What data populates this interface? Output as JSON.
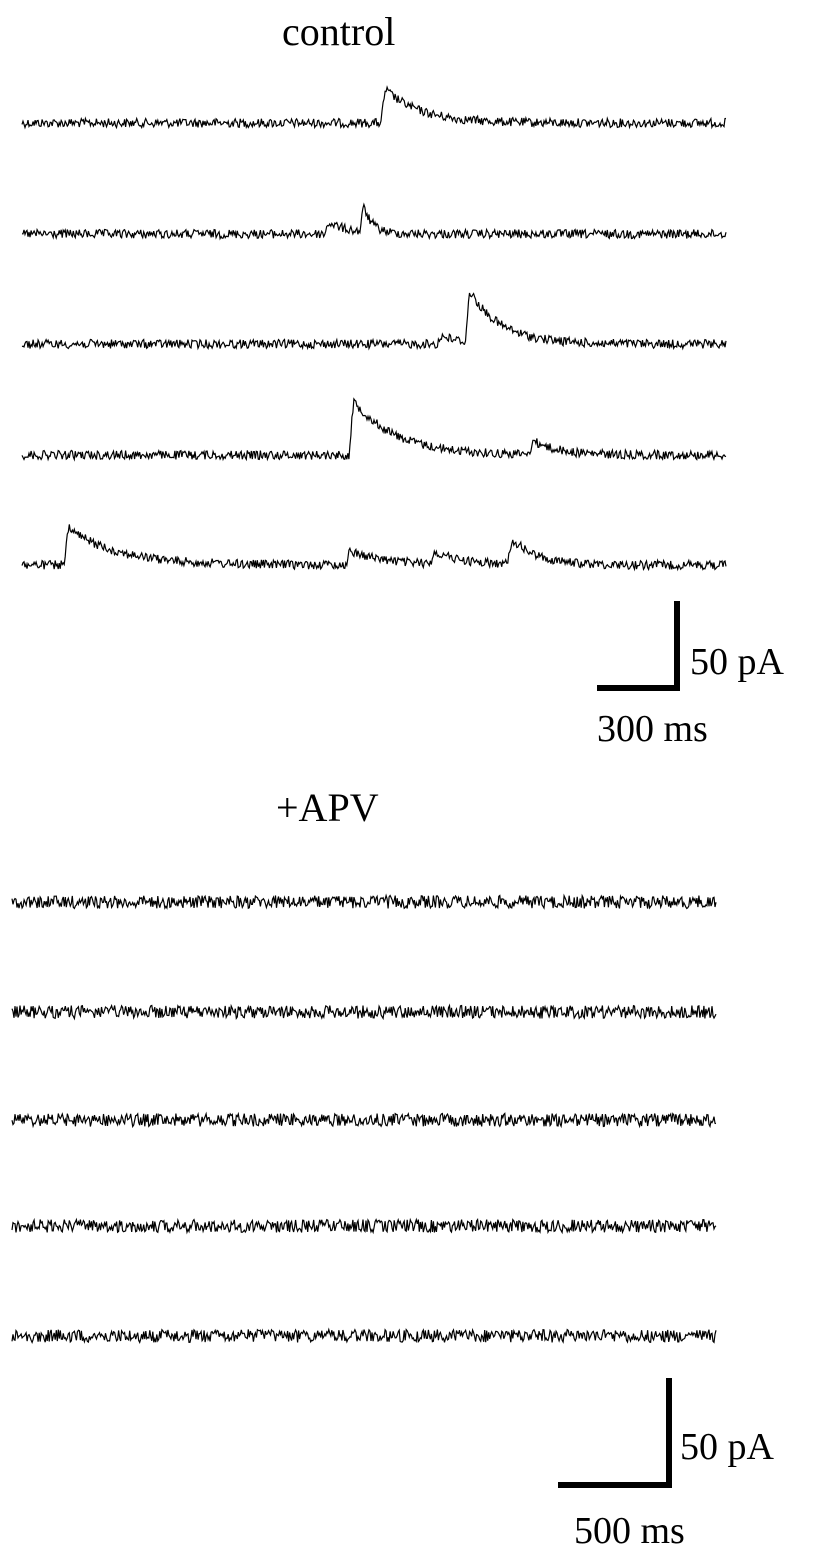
{
  "chart_data": [
    {
      "type": "line",
      "title": "control",
      "xlabel": "",
      "ylabel": "",
      "scale_bar": {
        "current": "50 pA",
        "time": "300 ms"
      },
      "series": [
        {
          "events": [
            {
              "t": 0.51,
              "amp": 38,
              "decay": 0.05
            }
          ]
        },
        {
          "events": [
            {
              "t": 0.43,
              "amp": 14,
              "decay": 0.03
            },
            {
              "t": 0.48,
              "amp": 40,
              "decay": 0.012
            }
          ]
        },
        {
          "events": [
            {
              "t": 0.59,
              "amp": 10,
              "decay": 0.03
            },
            {
              "t": 0.63,
              "amp": 58,
              "decay": 0.045
            }
          ]
        },
        {
          "events": [
            {
              "t": 0.465,
              "amp": 60,
              "decay": 0.06
            },
            {
              "t": 0.72,
              "amp": 16,
              "decay": 0.035
            }
          ]
        },
        {
          "events": [
            {
              "t": 0.06,
              "amp": 40,
              "decay": 0.07
            },
            {
              "t": 0.46,
              "amp": 16,
              "decay": 0.05
            },
            {
              "t": 0.58,
              "amp": 14,
              "decay": 0.04
            },
            {
              "t": 0.69,
              "amp": 30,
              "decay": 0.035
            }
          ]
        }
      ]
    },
    {
      "type": "line",
      "title": "+APV",
      "xlabel": "",
      "ylabel": "",
      "scale_bar": {
        "current": "50 pA",
        "time": "500 ms"
      },
      "series": [
        {
          "events": []
        },
        {
          "events": []
        },
        {
          "events": []
        },
        {
          "events": []
        },
        {
          "events": []
        }
      ]
    }
  ]
}
